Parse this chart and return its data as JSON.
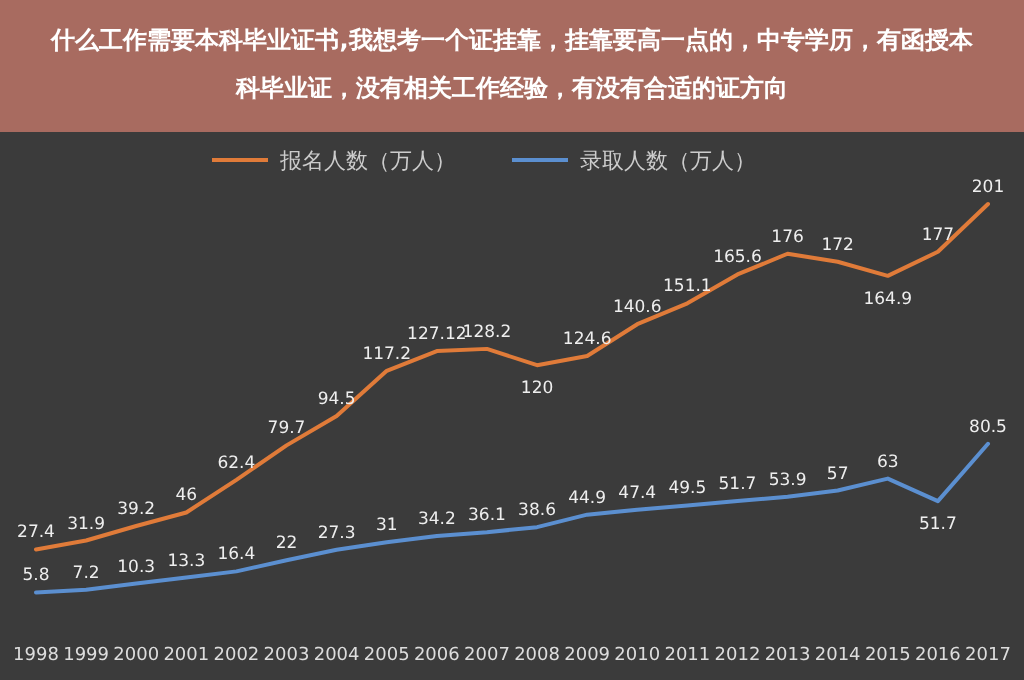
{
  "chart_data": {
    "type": "line",
    "title": "什么工作需要本科毕业证书,我想考一个证挂靠，挂靠要高一点的，中专学历，有函授本科毕业证，没有相关工作经验，有没有合适的证方向",
    "categories": [
      "1998",
      "1999",
      "2000",
      "2001",
      "2002",
      "2003",
      "2004",
      "2005",
      "2006",
      "2007",
      "2008",
      "2009",
      "2010",
      "2011",
      "2012",
      "2013",
      "2014",
      "2015",
      "2016",
      "2017"
    ],
    "series": [
      {
        "name": "报名人数（万人）",
        "color": "#e07b39",
        "values": [
          27.4,
          31.9,
          39.2,
          46,
          62.4,
          79.7,
          94.5,
          117.2,
          127.12,
          128.2,
          120,
          124.6,
          140.6,
          151.1,
          165.6,
          176,
          172,
          164.9,
          177,
          201
        ]
      },
      {
        "name": "录取人数（万人）",
        "color": "#5b8fd0",
        "values": [
          5.8,
          7.2,
          10.3,
          13.3,
          16.4,
          22,
          27.3,
          31,
          34.2,
          36.1,
          38.6,
          44.9,
          47.4,
          49.5,
          51.7,
          53.9,
          57,
          63,
          51.7,
          80.5
        ]
      }
    ],
    "data_labels": true,
    "legend": "top",
    "marker": "none"
  }
}
